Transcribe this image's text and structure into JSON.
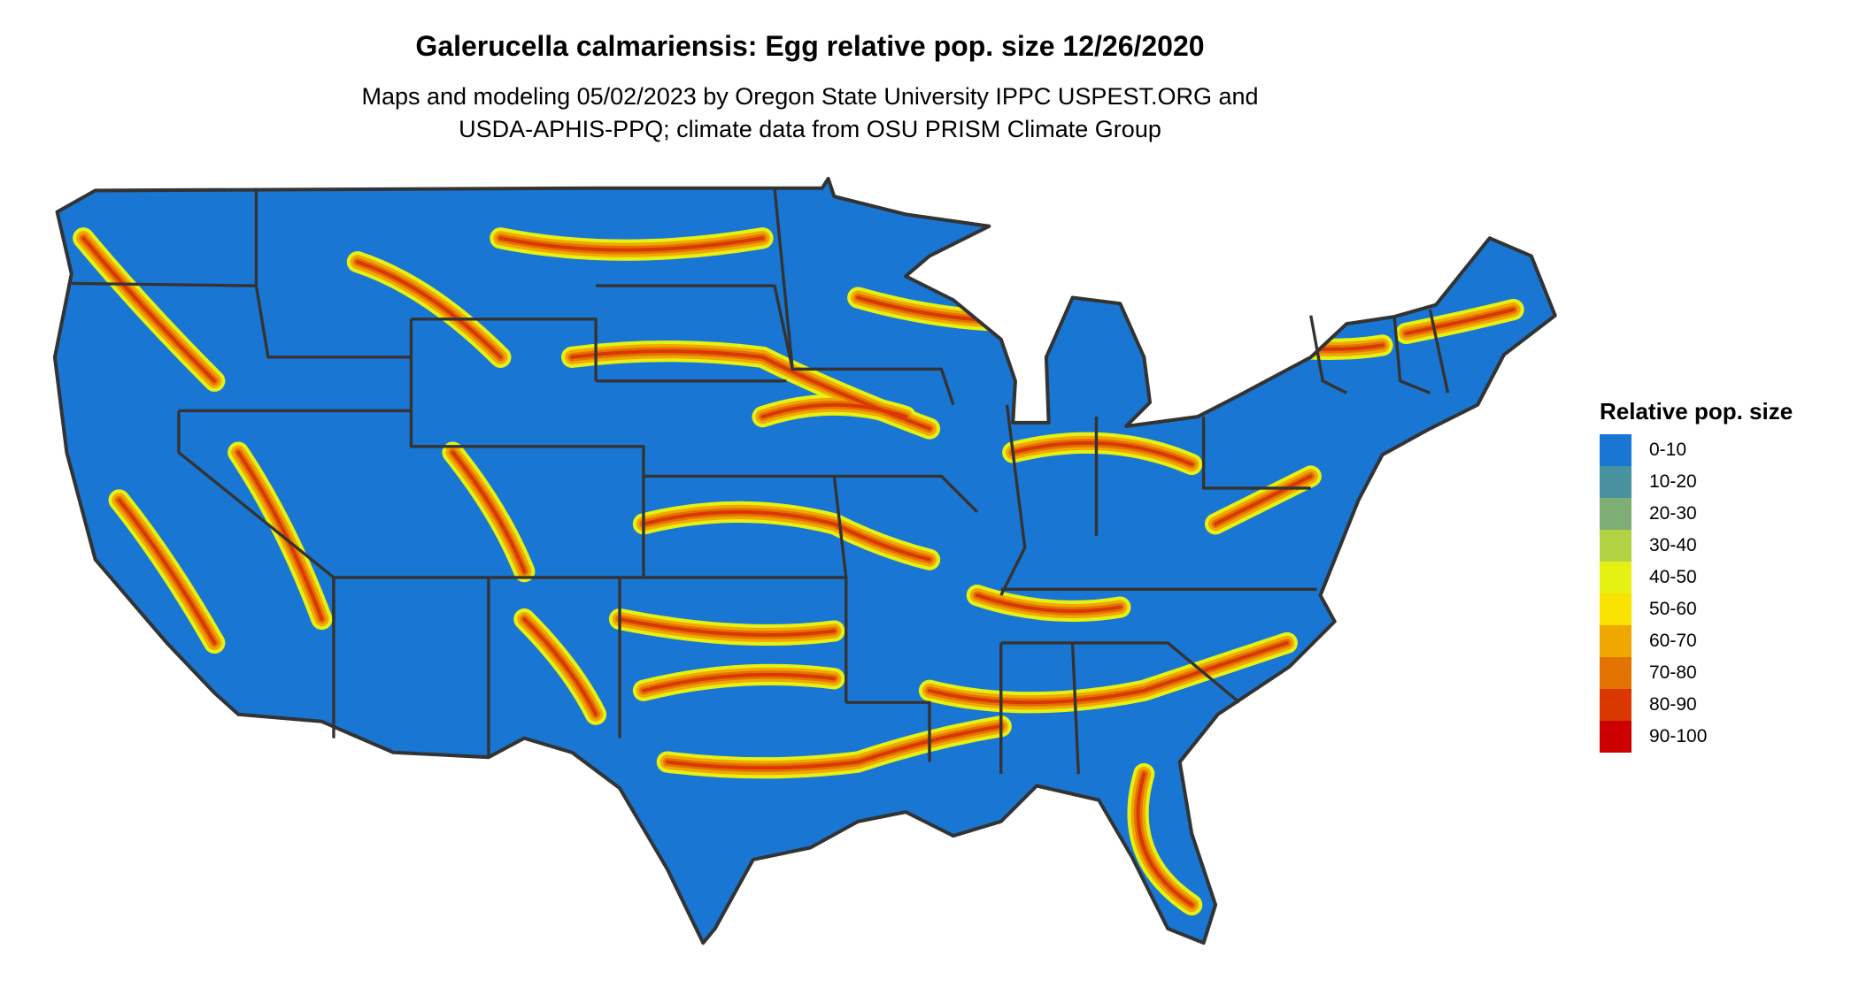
{
  "chart_data": {
    "type": "heatmap",
    "title": "Galerucella calmariensis: Egg relative pop. size 12/26/2020",
    "subtitle_lines": [
      "Maps and modeling 05/02/2023 by Oregon State University IPPC USPEST.ORG and",
      "USDA-APHIS-PPQ; climate data from OSU PRISM Climate Group"
    ],
    "legend": {
      "title": "Relative pop. size",
      "placement": "right",
      "items": [
        {
          "label": "0-10",
          "color": "#1976D2"
        },
        {
          "label": "10-20",
          "color": "#48919E"
        },
        {
          "label": "20-30",
          "color": "#7EAE73"
        },
        {
          "label": "30-40",
          "color": "#B3D244"
        },
        {
          "label": "40-50",
          "color": "#E5F113"
        },
        {
          "label": "50-60",
          "color": "#F9E100"
        },
        {
          "label": "60-70",
          "color": "#F0A800"
        },
        {
          "label": "70-80",
          "color": "#E37300"
        },
        {
          "label": "80-90",
          "color": "#DA3800"
        },
        {
          "label": "90-100",
          "color": "#CC0000"
        }
      ]
    },
    "border_color": "#333333"
  }
}
